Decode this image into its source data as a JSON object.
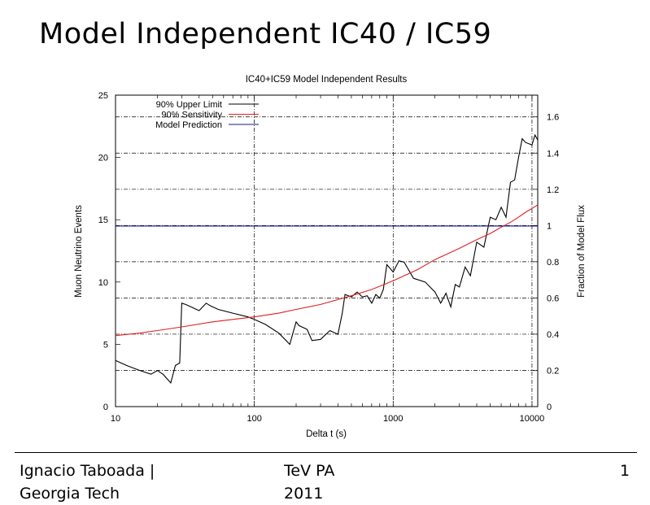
{
  "slide": {
    "title": "Model Independent IC40 / IC59"
  },
  "footer": {
    "left_line1": "Ignacio Taboada |",
    "left_line2": "Georgia Tech",
    "middle_line1": "TeV PA",
    "middle_line2": "2011",
    "page_number": "1"
  },
  "chart_data": {
    "type": "line",
    "title": "IC40+IC59 Model Independent Results",
    "xlabel": "Delta t (s)",
    "ylabel": "Muon Neutrino Events",
    "y2label": "Fraction of Model Flux",
    "xscale": "log",
    "xlim": [
      10,
      11000
    ],
    "ylim": [
      0,
      25
    ],
    "y2lim": [
      0,
      1.72
    ],
    "x_ticks": [
      "10",
      "100",
      "1000",
      "10000"
    ],
    "y_ticks": [
      "0",
      "5",
      "10",
      "15",
      "20",
      "25"
    ],
    "y2_ticks": [
      "0",
      "0.2",
      "0.4",
      "0.6",
      "0.8",
      "1",
      "1.2",
      "1.4",
      "1.6"
    ],
    "legend_position": "top-left",
    "grid": true,
    "colors": {
      "upper": "#000000",
      "sensitivity": "#e02020",
      "prediction": "#1a1a8c"
    },
    "series": [
      {
        "name": "90% Upper Limit",
        "x": [
          10,
          12,
          15,
          18,
          20,
          22,
          25,
          27,
          29,
          30,
          32,
          35,
          40,
          45,
          48,
          55,
          70,
          90,
          100,
          120,
          150,
          180,
          200,
          210,
          240,
          260,
          300,
          350,
          400,
          430,
          450,
          500,
          550,
          600,
          650,
          700,
          750,
          800,
          850,
          900,
          1000,
          1100,
          1200,
          1400,
          1700,
          2000,
          2200,
          2400,
          2600,
          2800,
          3000,
          3300,
          3600,
          4000,
          4500,
          5000,
          5500,
          6000,
          6500,
          7000,
          7500,
          8000,
          8500,
          9000,
          10000,
          10500,
          11000
        ],
        "values": [
          3.7,
          3.3,
          2.9,
          2.6,
          2.9,
          2.6,
          1.9,
          3.3,
          3.5,
          8.3,
          8.2,
          8.0,
          7.7,
          8.3,
          8.1,
          7.8,
          7.5,
          7.2,
          7.0,
          6.6,
          5.9,
          5.0,
          6.8,
          6.5,
          6.2,
          5.3,
          5.4,
          6.1,
          5.8,
          7.5,
          9.0,
          8.8,
          9.2,
          8.8,
          8.9,
          8.3,
          9.0,
          8.7,
          9.4,
          11.4,
          10.8,
          11.7,
          11.6,
          10.3,
          10.0,
          9.2,
          8.3,
          9.1,
          8.0,
          9.8,
          9.6,
          11.2,
          10.5,
          13.2,
          12.8,
          15.2,
          15.0,
          16.0,
          15.2,
          18.0,
          18.2,
          20.0,
          21.5,
          21.2,
          21.0,
          21.8,
          21.4
        ]
      },
      {
        "name": "90% Sensitivity",
        "x": [
          10,
          15,
          20,
          30,
          50,
          70,
          100,
          150,
          200,
          300,
          500,
          700,
          1000,
          1500,
          2000,
          3000,
          4000,
          5000,
          6000,
          7000,
          8000,
          9000,
          10000,
          11000
        ],
        "values": [
          5.7,
          5.9,
          6.1,
          6.4,
          6.8,
          7.0,
          7.2,
          7.5,
          7.8,
          8.2,
          8.9,
          9.4,
          10.1,
          11.0,
          11.8,
          12.7,
          13.4,
          13.9,
          14.4,
          14.8,
          15.2,
          15.6,
          15.9,
          16.2
        ]
      },
      {
        "name": "Model Prediction",
        "x": [
          10,
          11000
        ],
        "values": [
          14.5,
          14.5
        ]
      }
    ]
  }
}
